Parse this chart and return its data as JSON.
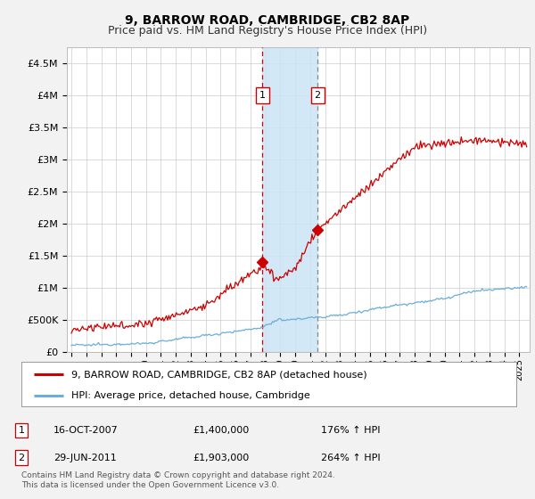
{
  "title": "9, BARROW ROAD, CAMBRIDGE, CB2 8AP",
  "subtitle": "Price paid vs. HM Land Registry's House Price Index (HPI)",
  "title_fontsize": 10,
  "subtitle_fontsize": 9,
  "ylim": [
    0,
    4750000
  ],
  "yticks": [
    0,
    500000,
    1000000,
    1500000,
    2000000,
    2500000,
    3000000,
    3500000,
    4000000,
    4500000
  ],
  "ytick_labels": [
    "£0",
    "£500K",
    "£1M",
    "£1.5M",
    "£2M",
    "£2.5M",
    "£3M",
    "£3.5M",
    "£4M",
    "£4.5M"
  ],
  "xlim_start": 1994.7,
  "xlim_end": 2025.7,
  "xtick_years": [
    1995,
    1996,
    1997,
    1998,
    1999,
    2000,
    2001,
    2002,
    2003,
    2004,
    2005,
    2006,
    2007,
    2008,
    2009,
    2010,
    2011,
    2012,
    2013,
    2014,
    2015,
    2016,
    2017,
    2018,
    2019,
    2020,
    2021,
    2022,
    2023,
    2024,
    2025
  ],
  "hpi_line_color": "#6baed6",
  "price_line_color": "#cc0000",
  "marker1_x": 2007.79,
  "marker1_y": 1400000,
  "marker2_x": 2011.49,
  "marker2_y": 1903000,
  "shade_x1": 2007.79,
  "shade_x2": 2011.49,
  "shade_color": "#cce4f5",
  "vline1_color": "#cc0000",
  "vline2_color": "#888888",
  "legend_label1": "9, BARROW ROAD, CAMBRIDGE, CB2 8AP (detached house)",
  "legend_label2": "HPI: Average price, detached house, Cambridge",
  "annotation1_num": "1",
  "annotation1_date": "16-OCT-2007",
  "annotation1_price": "£1,400,000",
  "annotation1_hpi": "176% ↑ HPI",
  "annotation2_num": "2",
  "annotation2_date": "29-JUN-2011",
  "annotation2_price": "£1,903,000",
  "annotation2_hpi": "264% ↑ HPI",
  "footer": "Contains HM Land Registry data © Crown copyright and database right 2024.\nThis data is licensed under the Open Government Licence v3.0.",
  "background_color": "#f2f2f2",
  "plot_bg_color": "#ffffff",
  "grid_color": "#cccccc"
}
